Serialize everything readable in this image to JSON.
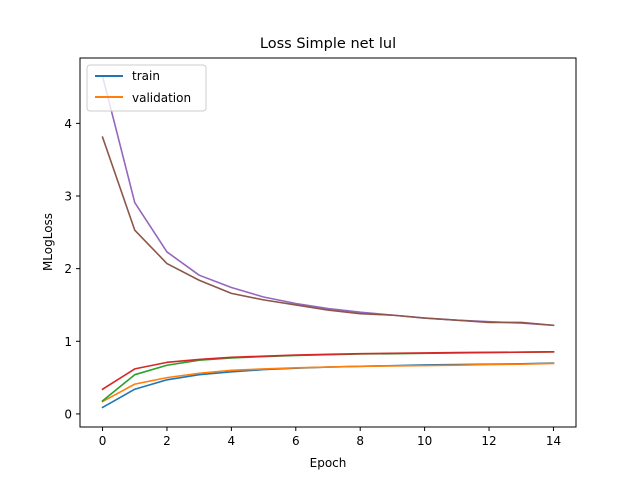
{
  "chart_data": {
    "type": "line",
    "title": "Loss Simple net lul",
    "xlabel": "Epoch",
    "ylabel": "MLogLoss",
    "xlim": [
      -0.7,
      14.7
    ],
    "ylim": [
      -0.18,
      4.9
    ],
    "xticks": [
      0,
      2,
      4,
      6,
      8,
      10,
      12,
      14
    ],
    "yticks": [
      0,
      1,
      2,
      3,
      4
    ],
    "grid": false,
    "legend": {
      "placement": "top-left",
      "entries": [
        "train",
        "validation"
      ]
    },
    "x": [
      0,
      1,
      2,
      3,
      4,
      5,
      6,
      7,
      8,
      9,
      10,
      11,
      12,
      13,
      14
    ],
    "series": [
      {
        "name": "train",
        "color": "#1f77b4",
        "values": [
          0.09,
          0.34,
          0.47,
          0.54,
          0.58,
          0.61,
          0.63,
          0.645,
          0.655,
          0.665,
          0.675,
          0.68,
          0.685,
          0.69,
          0.7
        ]
      },
      {
        "name": "validation",
        "color": "#ff7f0e",
        "values": [
          0.17,
          0.41,
          0.5,
          0.56,
          0.6,
          0.62,
          0.635,
          0.645,
          0.655,
          0.66,
          0.665,
          0.67,
          0.68,
          0.685,
          0.695
        ]
      },
      {
        "color": "#2ca02c",
        "values": [
          0.18,
          0.54,
          0.67,
          0.74,
          0.77,
          0.79,
          0.805,
          0.815,
          0.825,
          0.83,
          0.835,
          0.84,
          0.845,
          0.85,
          0.855
        ]
      },
      {
        "color": "#d62728",
        "values": [
          0.34,
          0.62,
          0.71,
          0.75,
          0.78,
          0.795,
          0.81,
          0.82,
          0.83,
          0.835,
          0.84,
          0.845,
          0.848,
          0.85,
          0.855
        ]
      },
      {
        "color": "#9467bd",
        "values": [
          4.65,
          2.91,
          2.23,
          1.91,
          1.74,
          1.61,
          1.52,
          1.45,
          1.4,
          1.36,
          1.32,
          1.29,
          1.27,
          1.25,
          1.22
        ]
      },
      {
        "color": "#8c564b",
        "values": [
          3.81,
          2.53,
          2.07,
          1.84,
          1.66,
          1.57,
          1.5,
          1.43,
          1.38,
          1.36,
          1.32,
          1.29,
          1.26,
          1.26,
          1.22
        ]
      }
    ]
  }
}
